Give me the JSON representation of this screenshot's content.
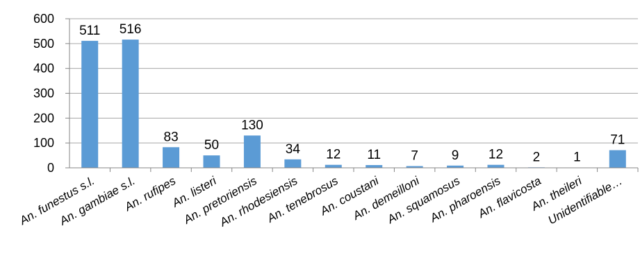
{
  "chart_data": {
    "type": "bar",
    "title": "",
    "xlabel": "",
    "ylabel": "",
    "categories": [
      "An. funestus s.l.",
      "An. gambiae s.l.",
      "An. rufipes",
      "An. listeri",
      "An. pretoriensis",
      "An. rhodesiensis",
      "An. tenebrosus",
      "An. coustani",
      "An. demeilloni",
      "An. squamosus",
      "An. pharoensis",
      "An. flavicosta",
      "An. theileri",
      "Unidentifiable…"
    ],
    "values": [
      511,
      516,
      83,
      50,
      130,
      34,
      12,
      11,
      7,
      9,
      12,
      2,
      1,
      71
    ],
    "data_labels": [
      "511",
      "516",
      "83",
      "50",
      "130",
      "34",
      "12",
      "11",
      "7",
      "9",
      "12",
      "2",
      "1",
      "71"
    ],
    "ylim": [
      0,
      600
    ],
    "yticks": [
      "0",
      "100",
      "200",
      "300",
      "400",
      "500",
      "600"
    ],
    "grid": true,
    "legend": "none",
    "bar_color": "#5B9BD5",
    "grid_color": "#A6A6A6",
    "axis_color": "#868686"
  }
}
